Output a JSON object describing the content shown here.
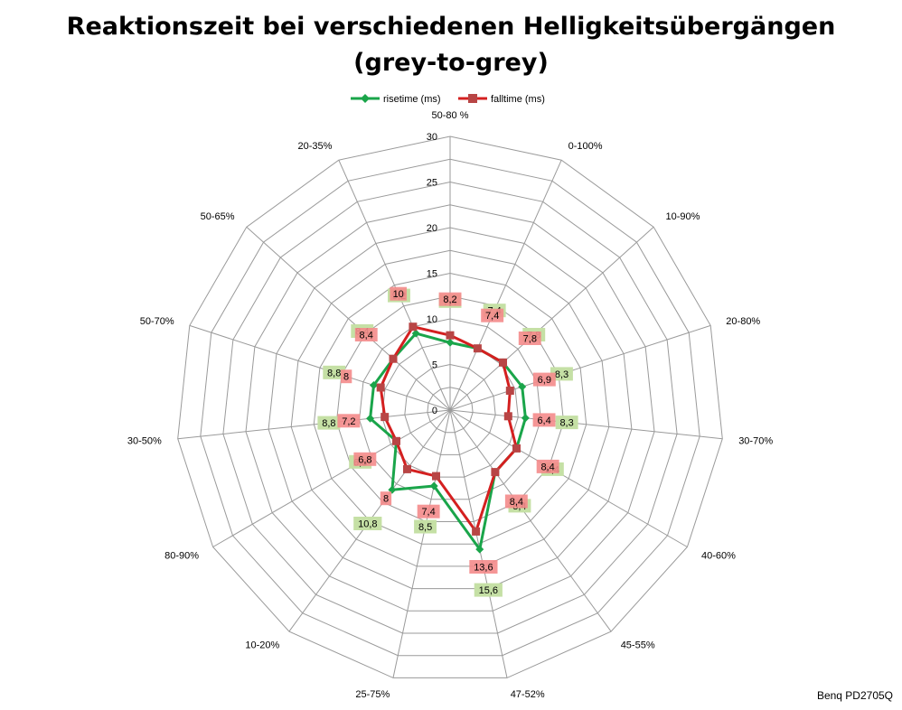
{
  "title": {
    "line1": "Reaktionszeit bei verschiedenen Helligkeitsübergängen",
    "line2": "(grey-to-grey)"
  },
  "credit": "Benq PD2705Q",
  "colors": {
    "risetime": "#1aa54a",
    "falltime": "#d42020",
    "grid": "#9a9a9a",
    "rise_label_bg": "#c5e0a5",
    "fall_label_bg": "#f48b8b",
    "fall_label_bg_dark": "#e0714d"
  },
  "chart_data": {
    "type": "radar",
    "title": "Reaktionszeit bei verschiedenen Helligkeitsübergängen (grey-to-grey)",
    "categories": [
      "50-80 %",
      "0-100%",
      "10-90%",
      "20-80%",
      "30-70%",
      "40-60%",
      "45-55%",
      "47-52%",
      "25-75%",
      "10-20%",
      "80-90%",
      "30-50%",
      "50-70%",
      "50-65%",
      "20-35%"
    ],
    "series": [
      {
        "name": "risetime (ms)",
        "values": [
          7.4,
          7.4,
          7.8,
          8.3,
          8.3,
          8.4,
          8.4,
          15.6,
          8.5,
          10.8,
          6.8,
          8.8,
          8.8,
          8.4,
          9.2
        ],
        "labels": [
          "7,4",
          "7,4",
          "7,8",
          "8,3",
          "8,3",
          "8,4",
          "8,4",
          "15,6",
          "8,5",
          "10,8",
          "6,8",
          "8,8",
          "8,8",
          "8,4",
          "9,2"
        ]
      },
      {
        "name": "falltime (ms)",
        "values": [
          8.2,
          7.4,
          7.8,
          6.9,
          6.4,
          8.4,
          8.4,
          13.6,
          7.4,
          8.0,
          6.8,
          7.2,
          8.0,
          8.4,
          10.0
        ],
        "labels": [
          "8,2",
          "7,4",
          "7,8",
          "6,9",
          "6,4",
          "8,4",
          "8,4",
          "13,6",
          "7,4",
          "8",
          "6,8",
          "7,2",
          "8",
          "8,4",
          "10"
        ]
      }
    ],
    "rmin": 0,
    "rmax": 30,
    "ticks": [
      "0",
      "5",
      "10",
      "15",
      "20",
      "25",
      "30"
    ],
    "legend_position": "top",
    "grid": true
  }
}
